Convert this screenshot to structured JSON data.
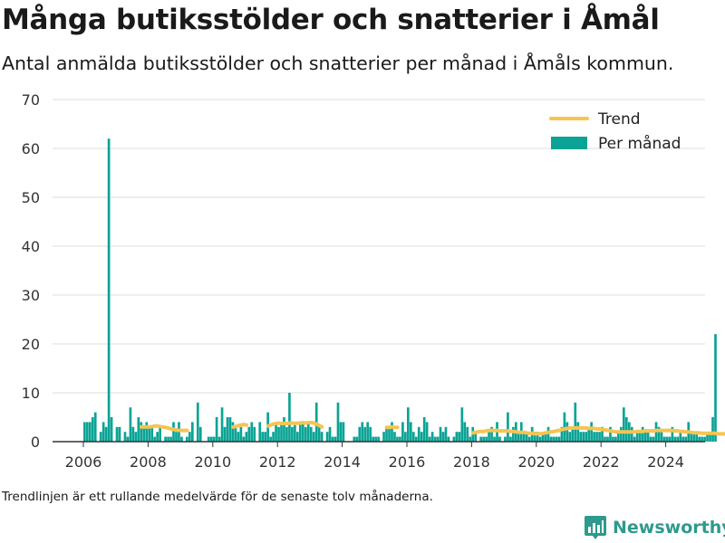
{
  "title": "Många butiksstölder och snatterier i Åmål",
  "subtitle": "Antal anmälda butiksstölder och snatterier per månad i Åmåls kommun.",
  "footnote": "Trendlinjen är ett rullande medelvärde för de senaste tolv månaderna.",
  "brand": {
    "name": "Newsworthy"
  },
  "colors": {
    "bars": "#0aa395",
    "trend": "#f6c451",
    "grid": "#dddddd",
    "axis": "#333333",
    "brand": "#2e9a8c"
  },
  "chart_data": {
    "type": "bar",
    "xlabel": "",
    "ylabel": "",
    "ylim": [
      0,
      70
    ],
    "yticks": [
      0,
      10,
      20,
      30,
      40,
      50,
      60,
      70
    ],
    "xticks": [
      "2006",
      "2008",
      "2010",
      "2012",
      "2014",
      "2016",
      "2018",
      "2020",
      "2022",
      "2024"
    ],
    "grid": true,
    "legend_position": "top-right",
    "start_month": "2006-01",
    "series": [
      {
        "name": "Per månad",
        "type": "bar",
        "values": [
          4,
          4,
          4,
          5,
          6,
          0,
          2,
          4,
          3,
          62,
          5,
          0,
          3,
          3,
          0,
          2,
          1,
          7,
          3,
          2,
          5,
          4,
          3,
          4,
          3,
          3,
          1,
          2,
          3,
          0,
          1,
          1,
          1,
          4,
          2,
          4,
          1,
          0,
          1,
          2,
          4,
          0,
          8,
          3,
          0,
          0,
          1,
          1,
          1,
          5,
          1,
          7,
          3,
          5,
          5,
          4,
          3,
          2,
          3,
          1,
          2,
          3,
          4,
          3,
          0,
          4,
          2,
          2,
          6,
          1,
          2,
          4,
          3,
          4,
          5,
          3,
          10,
          3,
          4,
          2,
          4,
          4,
          3,
          4,
          3,
          2,
          8,
          3,
          2,
          0,
          2,
          3,
          1,
          1,
          8,
          4,
          4,
          0,
          0,
          0,
          1,
          1,
          3,
          4,
          3,
          4,
          3,
          1,
          1,
          1,
          0,
          2,
          3,
          3,
          4,
          2,
          1,
          1,
          4,
          2,
          7,
          4,
          2,
          1,
          3,
          2,
          5,
          4,
          1,
          2,
          1,
          1,
          3,
          2,
          3,
          1,
          0,
          1,
          2,
          2,
          7,
          4,
          3,
          1,
          3,
          2,
          0,
          1,
          1,
          1,
          2,
          3,
          1,
          4,
          1,
          0,
          1,
          6,
          1,
          3,
          4,
          2,
          4,
          2,
          2,
          1,
          3,
          2,
          2,
          1,
          2,
          2,
          3,
          1,
          1,
          1,
          1,
          3,
          6,
          4,
          2,
          3,
          8,
          4,
          2,
          2,
          2,
          3,
          4,
          2,
          2,
          2,
          3,
          1,
          1,
          3,
          1,
          1,
          2,
          3,
          7,
          5,
          4,
          3,
          1,
          2,
          2,
          3,
          2,
          2,
          1,
          1,
          4,
          3,
          2,
          1,
          1,
          1,
          3,
          1,
          1,
          2,
          1,
          1,
          4,
          2,
          2,
          2,
          1,
          1,
          1,
          2,
          2,
          5,
          22
        ],
        "color": "#0aa395"
      },
      {
        "name": "Trend",
        "type": "line",
        "color": "#f6c451",
        "segments": [
          {
            "start_month": "2007-10",
            "values": [
              3,
              3,
              3,
              3,
              3.1,
              3.2,
              3.2,
              3.1,
              3.0,
              2.9,
              2.8,
              2.6,
              2.5,
              2.4,
              2.3,
              2.3,
              2.3,
              2.3
            ]
          },
          {
            "start_month": "2010-08",
            "values": [
              3.0,
              3.1,
              3.3,
              3.4,
              3.5,
              3.4
            ]
          },
          {
            "start_month": "2011-09",
            "values": [
              3.2,
              3.4,
              3.6,
              3.7,
              3.8,
              3.7,
              3.7,
              3.7,
              3.8,
              3.8,
              3.7,
              3.8,
              3.8,
              3.9,
              3.8,
              3.9,
              3.9,
              3.8,
              3.6,
              3.3,
              3.0
            ]
          },
          {
            "start_month": "2015-05",
            "values": [
              2.9,
              2.9,
              3.0,
              2.9,
              2.9
            ]
          },
          {
            "start_month": "2018-01",
            "values": [
              1.8,
              1.9,
              2.0,
              2.1,
              2.1,
              2.2,
              2.3,
              2.3,
              2.3,
              2.3,
              2.2,
              2.2,
              2.2,
              2.2,
              2.1,
              2.1,
              2.0,
              1.9,
              1.9,
              1.9,
              1.8,
              1.7,
              1.7,
              1.6,
              1.6,
              1.6,
              1.7,
              1.8,
              1.9,
              2.0,
              2.1,
              2.2,
              2.3,
              2.5,
              2.6,
              2.7,
              2.8,
              2.8,
              2.8,
              2.8,
              2.8,
              2.8,
              2.8,
              2.7,
              2.7,
              2.7,
              2.6,
              2.6,
              2.5,
              2.4,
              2.3,
              2.2,
              2.1,
              2.0,
              2.0,
              2.0,
              2.0,
              2.0,
              2.0,
              2.0,
              2.0,
              2.1,
              2.1,
              2.1,
              2.2,
              2.2,
              2.2,
              2.2,
              2.3,
              2.3,
              2.3,
              2.3,
              2.3,
              2.3,
              2.3,
              2.2,
              2.2,
              2.1,
              2.1,
              2.0,
              2.0,
              1.9,
              1.8,
              1.8,
              1.8,
              1.7,
              1.7,
              1.7,
              1.7,
              1.7,
              1.7,
              1.6,
              1.6,
              1.6,
              1.6,
              1.6,
              1.6,
              1.6,
              1.6,
              1.6,
              1.6,
              1.6,
              1.6,
              1.6,
              1.6,
              1.7,
              1.8,
              2.3,
              3.2
            ]
          }
        ]
      }
    ]
  }
}
